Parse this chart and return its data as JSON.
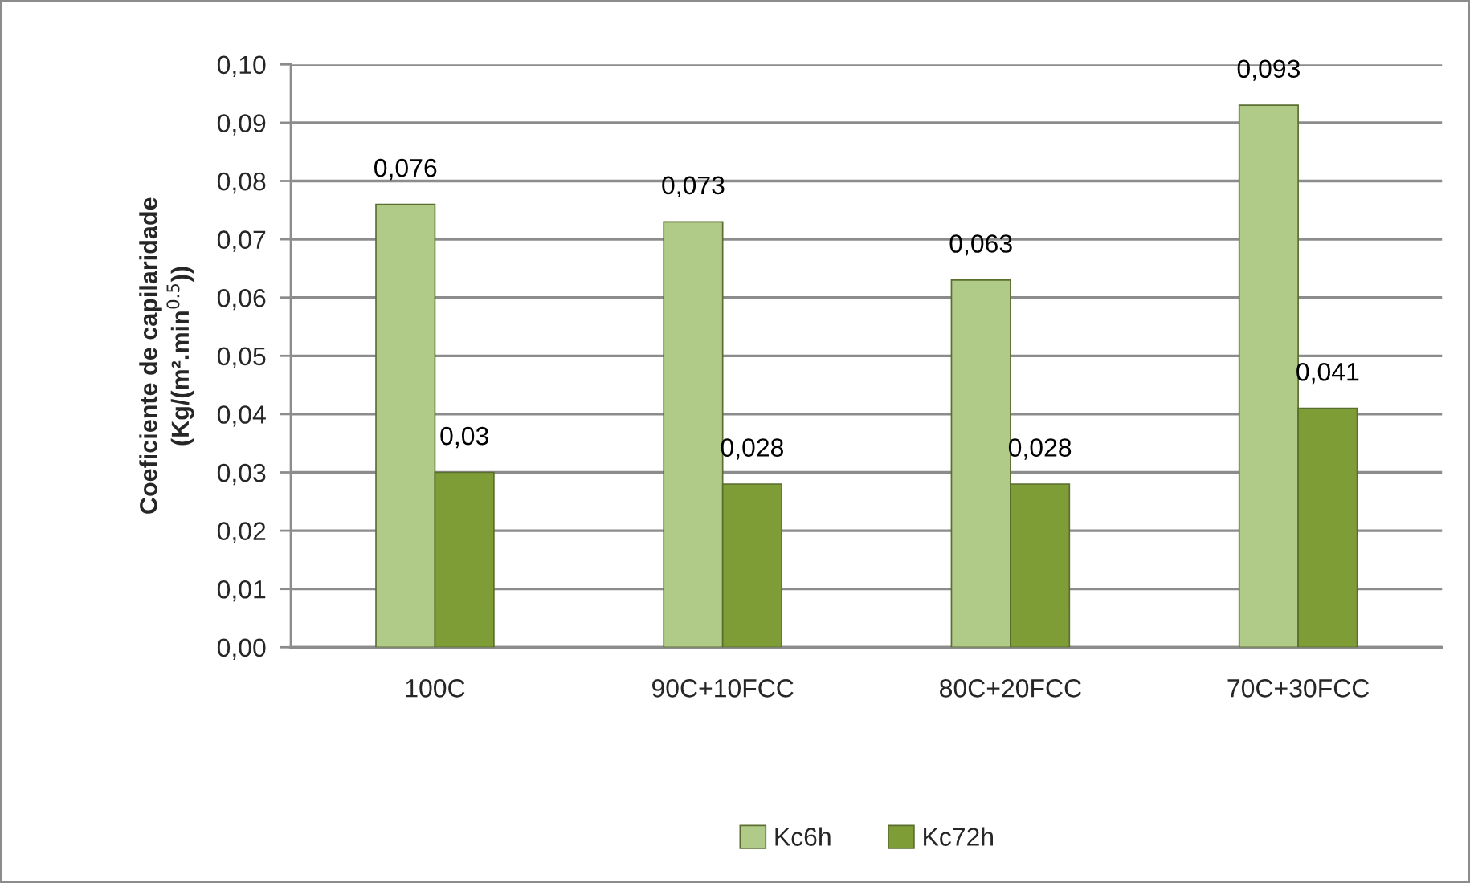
{
  "chart_data": {
    "type": "bar",
    "ylabel": "Coeficiente de capilaridade\n(Kg/(m².min$^{0.5}$))",
    "categories": [
      "100C",
      "90C+10FCC",
      "80C+20FCC",
      "70C+30FCC"
    ],
    "series": [
      {
        "name": "Kc6h",
        "color": "#b0cb88",
        "values": [
          0.076,
          0.073,
          0.063,
          0.093
        ],
        "value_labels": [
          "0,076",
          "0,073",
          "0,063",
          "0,093"
        ]
      },
      {
        "name": "Kc72h",
        "color": "#7f9d36",
        "values": [
          0.03,
          0.028,
          0.028,
          0.041
        ],
        "value_labels": [
          "0,03",
          "0,028",
          "0,028",
          "0,041"
        ]
      }
    ],
    "ylim": [
      0,
      0.1
    ],
    "yticks": [
      {
        "value": 0,
        "label": "0,00"
      },
      {
        "value": 0.01,
        "label": "0,01"
      },
      {
        "value": 0.02,
        "label": "0,02"
      },
      {
        "value": 0.03,
        "label": "0,03"
      },
      {
        "value": 0.04,
        "label": "0,04"
      },
      {
        "value": 0.05,
        "label": "0,05"
      },
      {
        "value": 0.06,
        "label": "0,06"
      },
      {
        "value": 0.07,
        "label": "0,07"
      },
      {
        "value": 0.08,
        "label": "0,08"
      },
      {
        "value": 0.09,
        "label": "0,09"
      },
      {
        "value": 0.1,
        "label": "0,10"
      }
    ],
    "grid": "y",
    "legend": "bottom"
  }
}
